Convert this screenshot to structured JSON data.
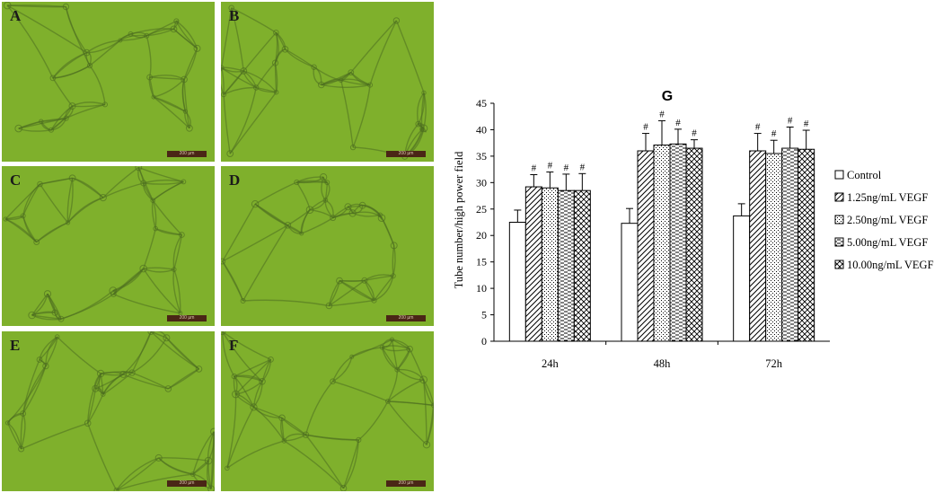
{
  "panels": [
    {
      "label": "A",
      "scale_text": "200 µm"
    },
    {
      "label": "B",
      "scale_text": "200 µm"
    },
    {
      "label": "C",
      "scale_text": "200 µm"
    },
    {
      "label": "D",
      "scale_text": "200 µm"
    },
    {
      "label": "E",
      "scale_text": "200 µm"
    },
    {
      "label": "F",
      "scale_text": "200 µm"
    }
  ],
  "colors": {
    "micrograph_bg": "#7fb02c",
    "micrograph_cell": "#4d6e21",
    "bar_edge": "#000000"
  },
  "chart_data": {
    "type": "bar",
    "title": "G",
    "xlabel": "",
    "ylabel": "Tube number/high power field",
    "ylim": [
      0,
      45
    ],
    "yticks": [
      0,
      5,
      10,
      15,
      20,
      25,
      30,
      35,
      40,
      45
    ],
    "grid": false,
    "legend_position": "right",
    "categories": [
      "24h",
      "48h",
      "72h"
    ],
    "significance_marker": "#",
    "series": [
      {
        "name": "Control",
        "pattern": "empty",
        "values": [
          22.5,
          22.3,
          23.7
        ],
        "errors": [
          2.3,
          2.8,
          2.3
        ],
        "marked": [
          false,
          false,
          false
        ]
      },
      {
        "name": "1.25ng/mL VEGF",
        "pattern": "diagonal",
        "values": [
          29.2,
          36.0,
          36.0
        ],
        "errors": [
          2.3,
          3.3,
          3.3
        ],
        "marked": [
          true,
          true,
          true
        ]
      },
      {
        "name": "2.50ng/mL VEGF",
        "pattern": "dotted-grid",
        "values": [
          29.0,
          37.1,
          35.5
        ],
        "errors": [
          3.0,
          4.6,
          2.5
        ],
        "marked": [
          true,
          true,
          true
        ]
      },
      {
        "name": "5.00ng/mL VEGF",
        "pattern": "dashes",
        "values": [
          28.5,
          37.3,
          36.5
        ],
        "errors": [
          3.1,
          2.8,
          4.0
        ],
        "marked": [
          true,
          true,
          true
        ]
      },
      {
        "name": "10.00ng/mL VEGF",
        "pattern": "crosshatch",
        "values": [
          28.5,
          36.5,
          36.3
        ],
        "errors": [
          3.2,
          1.6,
          3.6
        ],
        "marked": [
          true,
          true,
          true
        ]
      }
    ]
  }
}
